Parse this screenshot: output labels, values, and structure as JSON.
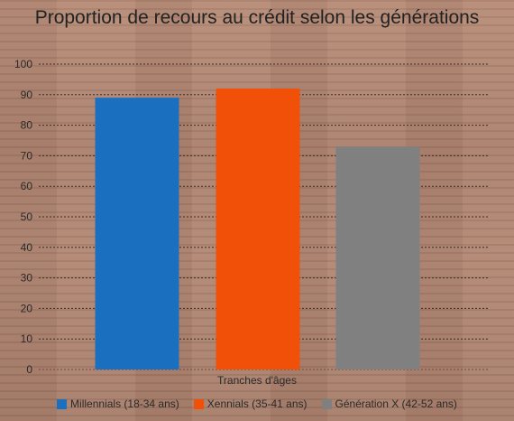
{
  "chart_data": {
    "type": "bar",
    "title": "Proportion de recours au crédit selon les générations",
    "xlabel": "Tranches d'âges",
    "ylabel": "",
    "ylim": [
      0,
      100
    ],
    "y_ticks": [
      "0",
      "10",
      "20",
      "30",
      "40",
      "50",
      "60",
      "70",
      "80",
      "90",
      "100"
    ],
    "grid": true,
    "legend_position": "bottom",
    "series": [
      {
        "name": "Millennials (18-34 ans)",
        "value": 89,
        "color": "#1a6fbf"
      },
      {
        "name": "Xennials (35-41 ans)",
        "value": 92,
        "color": "#f05008"
      },
      {
        "name": "Génération X (42-52 ans)",
        "value": 73,
        "color": "#808080"
      }
    ]
  }
}
